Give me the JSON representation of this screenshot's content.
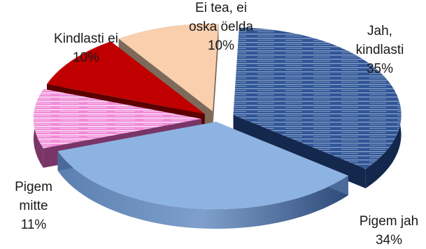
{
  "chart_data": {
    "type": "pie",
    "variant": "3d-exploded",
    "title": "",
    "unit": "%",
    "slices": [
      {
        "label_lines": [
          "Jah,",
          "kindlasti"
        ],
        "value": 35,
        "value_label": "35%",
        "top_color": "#2f5596",
        "side_color": "#14284d",
        "pattern": "striped"
      },
      {
        "label_lines": [
          "Pigem jah"
        ],
        "value": 34,
        "value_label": "34%",
        "top_color": "#8db3e2",
        "side_color": "#4a6a99",
        "pattern": "none"
      },
      {
        "label_lines": [
          "Pigem",
          "mitte"
        ],
        "value": 11,
        "value_label": "11%",
        "top_color": "#f08ad8",
        "side_color": "#7a3568",
        "pattern": "striped"
      },
      {
        "label_lines": [
          "Kindlasti ei"
        ],
        "value": 10,
        "value_label": "10%",
        "top_color": "#c00000",
        "side_color": "#5c0000",
        "pattern": "none"
      },
      {
        "label_lines": [
          "Ei tea, ei",
          "oska öelda"
        ],
        "value": 10,
        "value_label": "10%",
        "top_color": "#f9cfae",
        "side_color": "#7d6a5a",
        "pattern": "none"
      }
    ],
    "legend": "none"
  }
}
